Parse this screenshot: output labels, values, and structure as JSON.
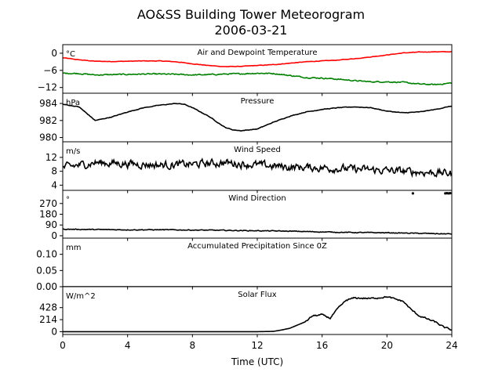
{
  "figure": {
    "title": "AO&SS Building Tower Meteorogram",
    "date": "2006-03-21",
    "xlabel": "Time (UTC)"
  },
  "chart_data": {
    "type": "line",
    "x_ticks": [
      0,
      4,
      8,
      12,
      16,
      20,
      24
    ],
    "xlim": [
      0,
      24
    ],
    "panels": [
      {
        "id": "temp",
        "title": "Air and Dewpoint Temperature",
        "unit": "°C",
        "ylim": [
          -14,
          3
        ],
        "yticks": [
          {
            "v": 0,
            "label": "0"
          },
          {
            "v": -6,
            "label": "−6"
          },
          {
            "v": -12,
            "label": "−12"
          }
        ],
        "series": [
          {
            "color": "#ff0000",
            "noise": 0.15,
            "x": [
              0,
              1,
              2,
              3,
              4,
              5,
              6,
              7,
              8,
              9,
              10,
              11,
              12,
              13,
              14,
              15,
              16,
              17,
              18,
              19,
              20,
              21,
              22,
              23,
              24
            ],
            "y": [
              -1.6,
              -2.3,
              -2.8,
              -2.9,
              -2.8,
              -2.7,
              -2.7,
              -3.0,
              -3.7,
              -4.3,
              -4.7,
              -4.6,
              -4.3,
              -4.0,
              -3.5,
              -3.0,
              -2.7,
              -2.4,
              -1.9,
              -1.3,
              -0.6,
              0.1,
              0.4,
              0.5,
              0.5
            ]
          },
          {
            "color": "#008000",
            "noise": 0.35,
            "x": [
              0,
              1,
              2,
              3,
              4,
              5,
              6,
              7,
              8,
              9,
              10,
              11,
              12,
              13,
              14,
              15,
              16,
              17,
              18,
              19,
              20,
              21,
              22,
              23,
              24
            ],
            "y": [
              -7.0,
              -7.1,
              -7.6,
              -7.5,
              -7.4,
              -7.3,
              -7.3,
              -7.4,
              -7.6,
              -7.5,
              -7.3,
              -7.2,
              -7.0,
              -7.1,
              -7.8,
              -8.5,
              -8.7,
              -9.1,
              -9.6,
              -10.0,
              -10.0,
              -10.2,
              -10.8,
              -11.0,
              -10.4
            ]
          }
        ]
      },
      {
        "id": "pres",
        "title": "Pressure",
        "unit": "hPa",
        "ylim": [
          979.5,
          985.2
        ],
        "yticks": [
          {
            "v": 984,
            "label": "984"
          },
          {
            "v": 982,
            "label": "982"
          },
          {
            "v": 980,
            "label": "980"
          }
        ],
        "series": [
          {
            "color": "#000000",
            "noise": 0.06,
            "x": [
              0,
              1,
              1.5,
              2,
              3,
              4,
              5,
              6,
              7,
              7.5,
              8,
              9,
              10,
              10.5,
              11,
              12,
              13,
              14,
              15,
              16,
              17,
              18,
              19,
              20,
              21,
              22,
              23,
              24
            ],
            "y": [
              983.9,
              983.6,
              982.8,
              982.0,
              982.4,
              983.0,
              983.5,
              983.8,
              984.0,
              983.9,
              983.5,
              982.5,
              981.2,
              980.9,
              980.8,
              981.0,
              981.8,
              982.5,
              983.0,
              983.3,
              983.5,
              983.6,
              983.5,
              983.1,
              982.9,
              983.0,
              983.3,
              983.7
            ]
          }
        ]
      },
      {
        "id": "wspd",
        "title": "Wind Speed",
        "unit": "m/s",
        "ylim": [
          2.5,
          16.5
        ],
        "yticks": [
          {
            "v": 12,
            "label": "12"
          },
          {
            "v": 8,
            "label": "8"
          },
          {
            "v": 4,
            "label": "4"
          }
        ],
        "series": [
          {
            "color": "#000000",
            "noise": 2.0,
            "x": [
              0,
              2,
              4,
              6,
              8,
              10,
              12,
              14,
              16,
              18,
              20,
              22,
              24
            ],
            "y": [
              9.0,
              10.5,
              10.2,
              9.8,
              10.0,
              10.5,
              9.8,
              9.2,
              9.0,
              8.6,
              8.2,
              7.8,
              7.4
            ]
          }
        ]
      },
      {
        "id": "wdir",
        "title": "Wind Direction",
        "unit": "°",
        "ylim": [
          -20,
          380
        ],
        "yticks": [
          {
            "v": 270,
            "label": "270"
          },
          {
            "v": 180,
            "label": "180"
          },
          {
            "v": 90,
            "label": "90"
          },
          {
            "v": 0,
            "label": "0"
          }
        ],
        "series": [
          {
            "color": "#000000",
            "noise": 6,
            "x": [
              0,
              2,
              4,
              6,
              8,
              10,
              12,
              14,
              16,
              18,
              20,
              22,
              24
            ],
            "y": [
              55,
              52,
              50,
              50,
              48,
              45,
              42,
              38,
              32,
              27,
              25,
              20,
              15
            ]
          }
        ],
        "points": [
          {
            "color": "#000000",
            "x": [
              21.6,
              23.6,
              23.7,
              23.8,
              23.9
            ],
            "y": [
              355,
              355,
              356,
              355,
              356
            ]
          }
        ]
      },
      {
        "id": "precip",
        "title": "Accumulated Precipitation Since 0Z",
        "unit": "mm",
        "ylim": [
          0,
          0.15
        ],
        "yticks": [
          {
            "v": 0.1,
            "label": "0.10"
          },
          {
            "v": 0.05,
            "label": "0.05"
          },
          {
            "v": 0.0,
            "label": "0.00"
          }
        ],
        "series": [
          {
            "color": "#000000",
            "noise": 0,
            "x": [
              0,
              24
            ],
            "y": [
              0,
              0
            ]
          }
        ]
      },
      {
        "id": "solar",
        "title": "Solar Flux",
        "unit": "W/m^2",
        "ylim": [
          -50,
          800
        ],
        "yticks": [
          {
            "v": 428,
            "label": "428"
          },
          {
            "v": 214,
            "label": "214"
          },
          {
            "v": 0,
            "label": "0"
          }
        ],
        "series": [
          {
            "color": "#000000",
            "noise": 25,
            "noise_from": 15.0,
            "x": [
              0,
              6,
              12,
              13.0,
              13.5,
              14,
              15,
              15.4,
              16,
              16.5,
              17,
              17.5,
              18,
              19,
              20,
              21,
              21.5,
              22,
              23,
              23.5,
              24
            ],
            "y": [
              0,
              0,
              0,
              5,
              30,
              60,
              180,
              280,
              300,
              240,
              420,
              560,
              600,
              590,
              620,
              540,
              390,
              280,
              170,
              80,
              30
            ]
          }
        ]
      }
    ]
  }
}
